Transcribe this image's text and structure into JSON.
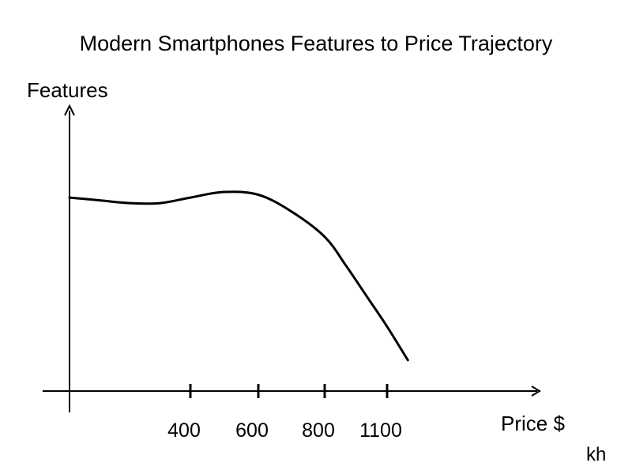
{
  "chart_data": {
    "type": "line",
    "title": "Modern Smartphones Features to Price Trajectory",
    "xlabel": "Price $",
    "ylabel": "Features",
    "x_ticks": [
      400,
      600,
      800,
      1100
    ],
    "series": [
      {
        "x": [
          0,
          100,
          200,
          300,
          400,
          500,
          600,
          700,
          800,
          900,
          1000,
          1100,
          1200
        ],
        "y": [
          0.69,
          0.68,
          0.67,
          0.67,
          0.69,
          0.71,
          0.7,
          0.64,
          0.55,
          0.45,
          0.34,
          0.23,
          0.11
        ],
        "color": "#000000"
      }
    ],
    "legend": "none",
    "grid": false
  },
  "signature": "kh"
}
